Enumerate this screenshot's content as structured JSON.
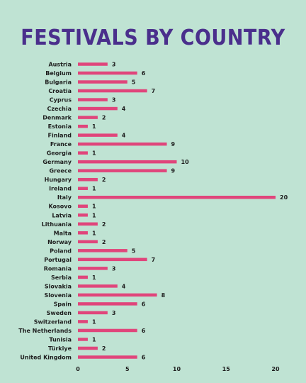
{
  "chart_data": {
    "type": "bar",
    "orientation": "horizontal",
    "title": "FESTIVALS BY COUNTRY",
    "xlabel": "",
    "ylabel": "",
    "xlim": [
      0,
      20
    ],
    "ticks": [
      0,
      5,
      10,
      15,
      20
    ],
    "grid": false,
    "bar_color": "#e0457b",
    "title_color": "#4a2f8c",
    "background_color": "#bfe3d3",
    "categories": [
      "Austria",
      "Belgium",
      "Bulgaria",
      "Croatia",
      "Cyprus",
      "Czechia",
      "Denmark",
      "Estonia",
      "Finland",
      "France",
      "Georgia",
      "Germany",
      "Greece",
      "Hungary",
      "Ireland",
      "Italy",
      "Kosovo",
      "Latvia",
      "Lithuania",
      "Malta",
      "Norway",
      "Poland",
      "Portugal",
      "Romania",
      "Serbia",
      "Slovakia",
      "Slovenia",
      "Spain",
      "Sweden",
      "Switzerland",
      "The Netherlands",
      "Tunisia",
      "Türkiye",
      "United Kingdom"
    ],
    "values": [
      3,
      6,
      5,
      7,
      3,
      4,
      2,
      1,
      4,
      9,
      1,
      10,
      9,
      2,
      1,
      20,
      1,
      1,
      2,
      1,
      2,
      5,
      7,
      3,
      1,
      4,
      8,
      6,
      3,
      1,
      6,
      1,
      2,
      6
    ]
  }
}
